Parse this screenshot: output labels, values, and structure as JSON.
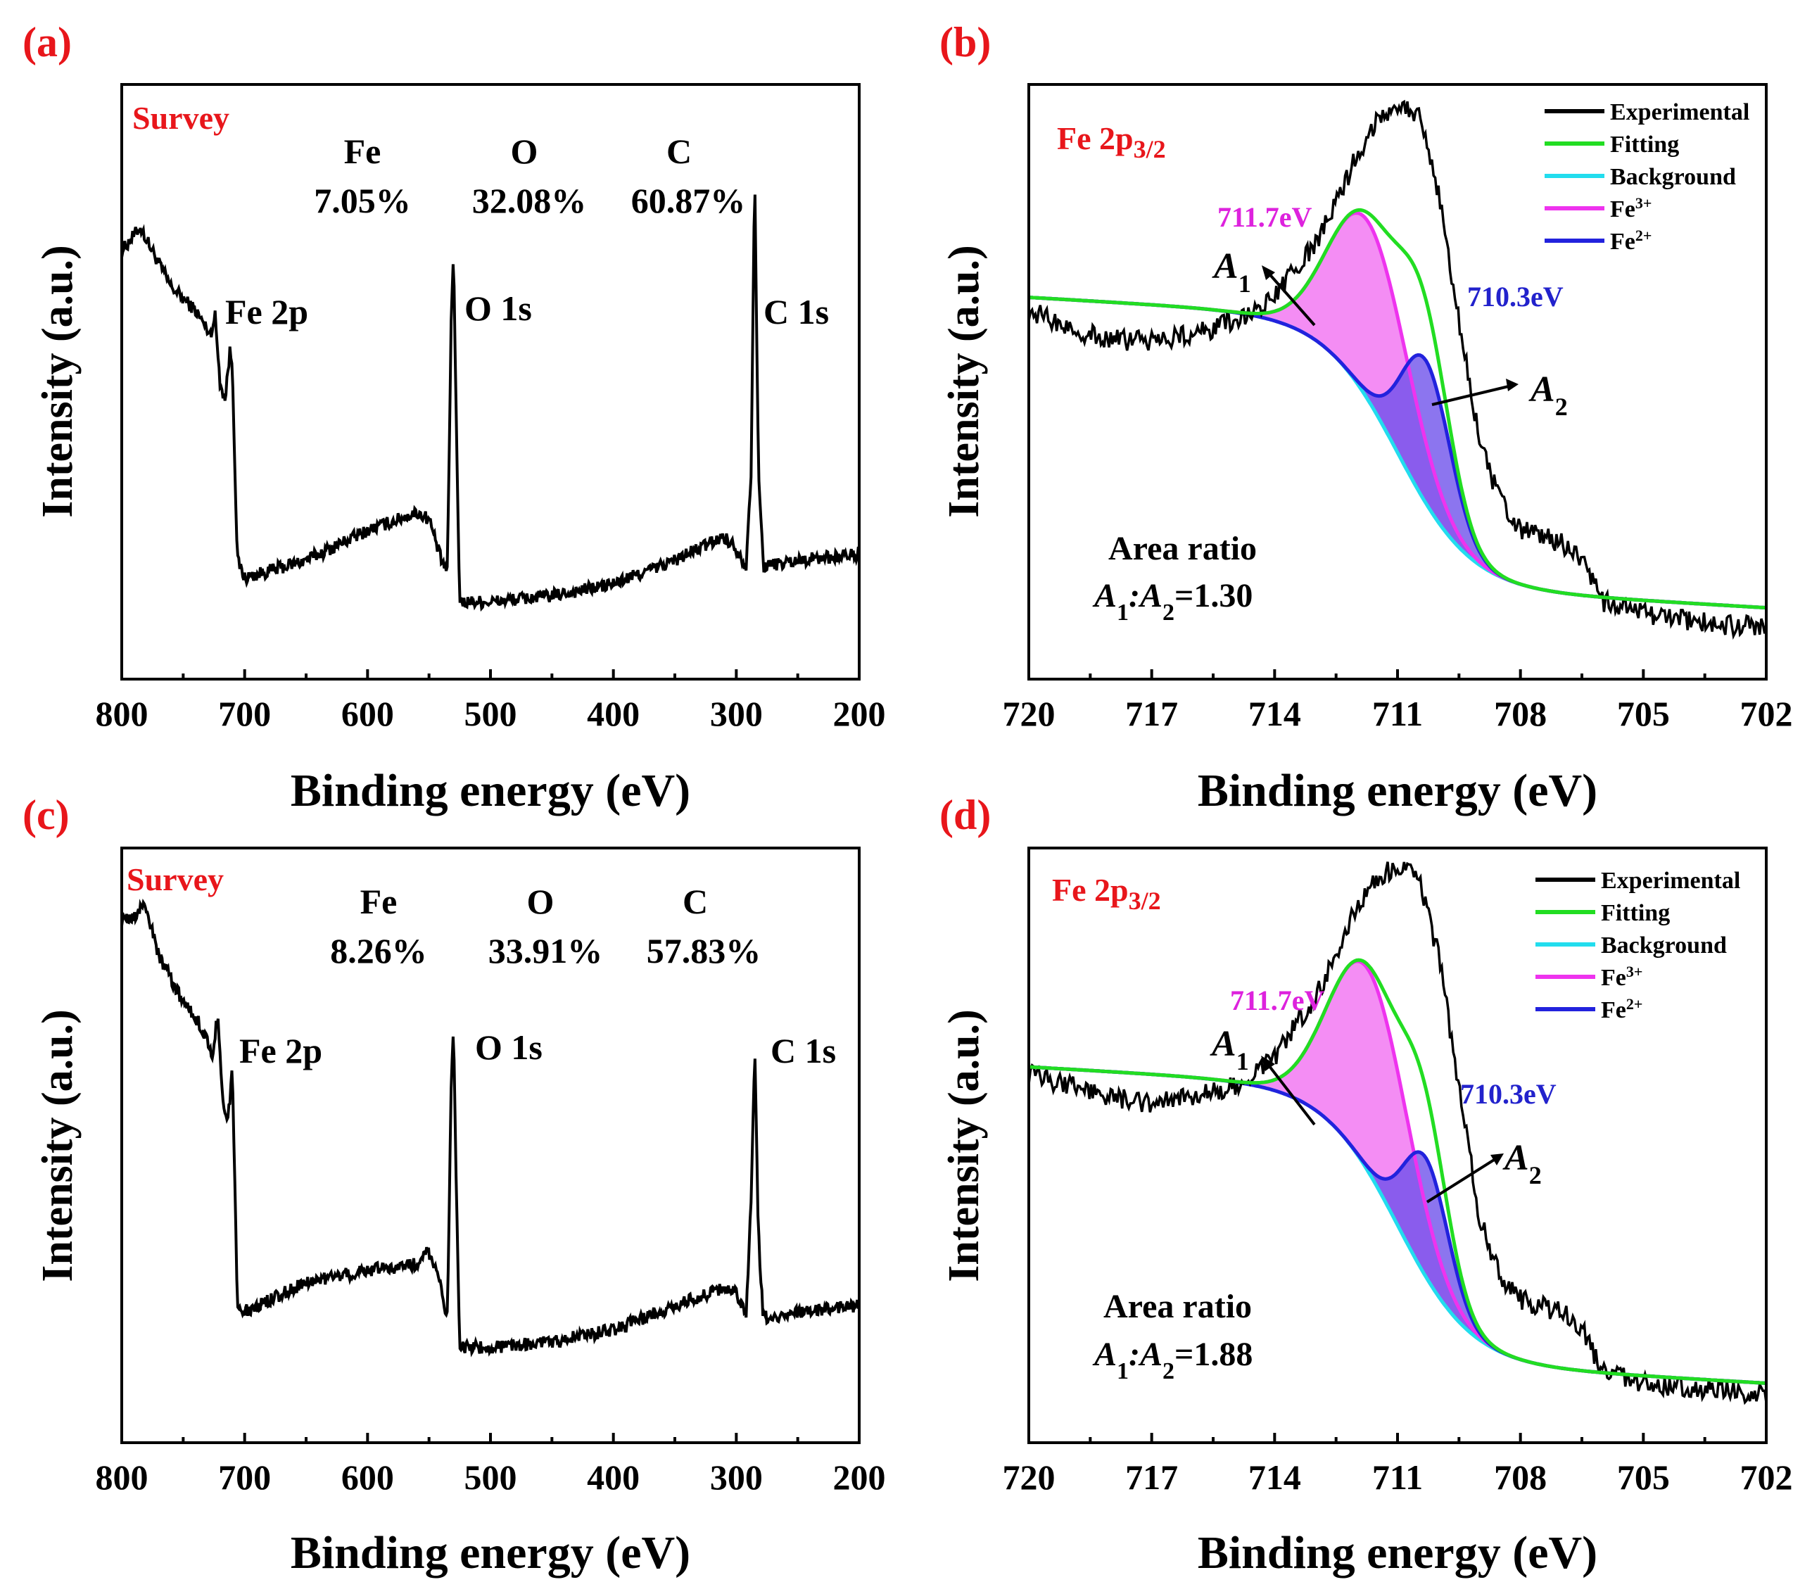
{
  "colors": {
    "text_red": "#e8161b",
    "experimental": "#000000",
    "fitting": "#22dd22",
    "background": "#22ddee",
    "fe3": "#ee33ee",
    "fe2": "#2222dd",
    "fe3_fill": "#f279f2",
    "fe2_fill": "#6b4eea",
    "fe2_light": "#8c8cff"
  },
  "chart_data": [
    {
      "panel": "(a)",
      "type": "line",
      "title": "Survey",
      "xlabel": "Binding energy (eV)",
      "ylabel": "Intensity (a.u.)",
      "xlim": [
        800,
        200
      ],
      "xticks": [
        800,
        700,
        600,
        500,
        400,
        300,
        200
      ],
      "composition": [
        {
          "element": "Fe",
          "percent": "7.05%"
        },
        {
          "element": "O",
          "percent": "32.08%"
        },
        {
          "element": "C",
          "percent": "60.87%"
        }
      ],
      "peak_labels": [
        {
          "text": "Fe 2p",
          "energy": 711
        },
        {
          "text": "O 1s",
          "energy": 531
        },
        {
          "text": "C 1s",
          "energy": 285
        }
      ],
      "series": [
        {
          "name": "Survey spectrum",
          "x": [
            800,
            785,
            780,
            760,
            740,
            728,
            724,
            720,
            716,
            712,
            710,
            706,
            700,
            650,
            600,
            560,
            550,
            540,
            535,
            532,
            530,
            528,
            525,
            500,
            450,
            400,
            350,
            310,
            300,
            292,
            288,
            285,
            282,
            278,
            250,
            200
          ],
          "y": [
            0.72,
            0.76,
            0.74,
            0.66,
            0.62,
            0.58,
            0.61,
            0.5,
            0.47,
            0.55,
            0.53,
            0.2,
            0.17,
            0.2,
            0.25,
            0.28,
            0.27,
            0.2,
            0.18,
            0.6,
            0.72,
            0.45,
            0.13,
            0.13,
            0.14,
            0.16,
            0.2,
            0.24,
            0.22,
            0.19,
            0.35,
            0.85,
            0.35,
            0.19,
            0.2,
            0.21
          ]
        }
      ]
    },
    {
      "panel": "(b)",
      "type": "line",
      "title": "Fe 2p3/2",
      "xlabel": "Binding energy (eV)",
      "ylabel": "Intensity (a.u.)",
      "xlim": [
        720,
        702
      ],
      "xticks": [
        720,
        717,
        714,
        711,
        708,
        705,
        702
      ],
      "legend": [
        "Experimental",
        "Fitting",
        "Background",
        "Fe3+",
        "Fe2+"
      ],
      "peak_positions": {
        "fe3": "711.7eV",
        "fe2": "710.3eV"
      },
      "area_labels": [
        "A1",
        "A2"
      ],
      "area_ratio_title": "Area ratio",
      "area_ratio": "A1:A2=1.30",
      "model": {
        "bg_high": 0.57,
        "bg_low": 0.12,
        "step_center": 711.0,
        "step_width": 0.9,
        "fe3": {
          "center": 711.7,
          "height": 0.3,
          "width": 0.95
        },
        "fe2": {
          "center": 710.3,
          "height": 0.24,
          "width": 0.6
        }
      },
      "series": [
        {
          "name": "Experimental",
          "x": [
            720,
            719,
            718,
            717,
            716,
            715,
            714,
            713.5,
            713,
            712.5,
            712,
            711.5,
            711,
            710.5,
            710,
            709.5,
            709,
            708.5,
            708,
            707.5,
            707,
            706.5,
            706,
            705,
            704,
            703,
            702
          ],
          "y": [
            0.62,
            0.59,
            0.57,
            0.57,
            0.58,
            0.6,
            0.64,
            0.69,
            0.73,
            0.8,
            0.88,
            0.94,
            0.97,
            0.95,
            0.82,
            0.6,
            0.4,
            0.3,
            0.25,
            0.24,
            0.23,
            0.2,
            0.13,
            0.11,
            0.1,
            0.09,
            0.09
          ]
        }
      ]
    },
    {
      "panel": "(c)",
      "type": "line",
      "title": "Survey",
      "xlabel": "Binding energy (eV)",
      "ylabel": "Intensity (a.u.)",
      "xlim": [
        800,
        200
      ],
      "xticks": [
        800,
        700,
        600,
        500,
        400,
        300,
        200
      ],
      "composition": [
        {
          "element": "Fe",
          "percent": "8.26%"
        },
        {
          "element": "O",
          "percent": "33.91%"
        },
        {
          "element": "C",
          "percent": "57.83%"
        }
      ],
      "peak_labels": [
        {
          "text": "Fe 2p",
          "energy": 711
        },
        {
          "text": "O 1s",
          "energy": 531
        },
        {
          "text": "C 1s",
          "energy": 285
        }
      ],
      "series": [
        {
          "name": "Survey spectrum",
          "x": [
            800,
            790,
            782,
            770,
            750,
            735,
            726,
            722,
            718,
            714,
            710,
            706,
            700,
            650,
            600,
            560,
            552,
            540,
            535,
            532,
            530,
            528,
            525,
            500,
            450,
            400,
            350,
            310,
            300,
            292,
            288,
            285,
            282,
            278,
            250,
            200
          ],
          "y": [
            0.88,
            0.88,
            0.91,
            0.82,
            0.74,
            0.7,
            0.65,
            0.72,
            0.58,
            0.53,
            0.63,
            0.24,
            0.22,
            0.27,
            0.29,
            0.3,
            0.33,
            0.26,
            0.21,
            0.6,
            0.7,
            0.45,
            0.16,
            0.16,
            0.17,
            0.19,
            0.23,
            0.26,
            0.25,
            0.22,
            0.4,
            0.66,
            0.35,
            0.21,
            0.22,
            0.23
          ]
        }
      ]
    },
    {
      "panel": "(d)",
      "type": "line",
      "title": "Fe 2p3/2",
      "xlabel": "Binding energy (eV)",
      "ylabel": "Intensity (a.u.)",
      "xlim": [
        720,
        702
      ],
      "xticks": [
        720,
        717,
        714,
        711,
        708,
        705,
        702
      ],
      "legend": [
        "Experimental",
        "Fitting",
        "Background",
        "Fe3+",
        "Fe2+"
      ],
      "peak_positions": {
        "fe3": "711.7eV",
        "fe2": "710.3eV"
      },
      "area_labels": [
        "A1",
        "A2"
      ],
      "area_ratio_title": "Area ratio",
      "area_ratio": "A1:A2=1.88",
      "model": {
        "bg_high": 0.56,
        "bg_low": 0.1,
        "step_center": 711.0,
        "step_width": 0.9,
        "fe3": {
          "center": 711.7,
          "height": 0.34,
          "width": 0.95
        },
        "fe2": {
          "center": 710.3,
          "height": 0.2,
          "width": 0.55
        }
      },
      "series": [
        {
          "name": "Experimental",
          "x": [
            720,
            719,
            718,
            717,
            716,
            715,
            714,
            713.5,
            713,
            712.5,
            712,
            711.5,
            711,
            710.5,
            710,
            709.5,
            709,
            708.5,
            708,
            707.5,
            707,
            706.5,
            706,
            705,
            704,
            703,
            702
          ],
          "y": [
            0.62,
            0.6,
            0.58,
            0.57,
            0.58,
            0.6,
            0.65,
            0.7,
            0.75,
            0.82,
            0.9,
            0.95,
            0.97,
            0.95,
            0.82,
            0.6,
            0.38,
            0.28,
            0.24,
            0.23,
            0.22,
            0.19,
            0.12,
            0.1,
            0.09,
            0.09,
            0.08
          ]
        }
      ]
    }
  ]
}
